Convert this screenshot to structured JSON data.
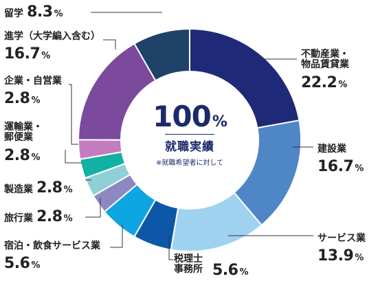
{
  "chart_data": {
    "type": "pie",
    "center_value": "100",
    "center_unit": "%",
    "center_title": "就職実績",
    "center_note": "※就職希望者に対して",
    "slices": [
      {
        "name": "不動産業・物品賃貸業",
        "value": 22.2,
        "display": "22.2",
        "color": "#1e2a78"
      },
      {
        "name": "建設業",
        "value": 16.7,
        "display": "16.7",
        "color": "#4f86c6"
      },
      {
        "name": "サービス業",
        "value": 13.9,
        "display": "13.9",
        "color": "#9fd2f1"
      },
      {
        "name": "税理士事務所",
        "value": 5.6,
        "display": "5.6",
        "color": "#0d58a6"
      },
      {
        "name": "宿泊・飲食サービス業",
        "value": 5.6,
        "display": "5.6",
        "color": "#0ea5e3"
      },
      {
        "name": "旅行業",
        "value": 2.8,
        "display": "2.8",
        "color": "#8e88c2"
      },
      {
        "name": "製造業",
        "value": 2.8,
        "display": "2.8",
        "color": "#8fd0d6"
      },
      {
        "name": "運輸業・郵便業",
        "value": 2.8,
        "display": "2.8",
        "color": "#13b0a5"
      },
      {
        "name": "企業・自営業",
        "value": 2.8,
        "display": "2.8",
        "color": "#c37cbf"
      },
      {
        "name": "進学（大学編入含む）",
        "value": 16.7,
        "display": "16.7",
        "color": "#7b4a9c"
      },
      {
        "name": "留学",
        "value": 8.3,
        "display": "8.3",
        "color": "#1f4268"
      }
    ]
  },
  "labels": {
    "fudosan_line1": "不動産業・",
    "fudosan_line2": "物品賃貸業",
    "kensetsu": "建設業",
    "service": "サービス業",
    "zeirishi_line1": "税理士",
    "zeirishi_line2": "事務所",
    "shukuhaku": "宿泊・飲食サービス業",
    "ryoko": "旅行業",
    "seizo": "製造業",
    "unyu_line1": "運輸業・",
    "unyu_line2": "郵便業",
    "kigyo": "企業・自営業",
    "shingaku": "進学（大学編入含む）",
    "ryugaku": "留学",
    "pct_sign": "%"
  },
  "colors": {
    "leader": "#333333",
    "center_text": "#1b2a6b"
  }
}
